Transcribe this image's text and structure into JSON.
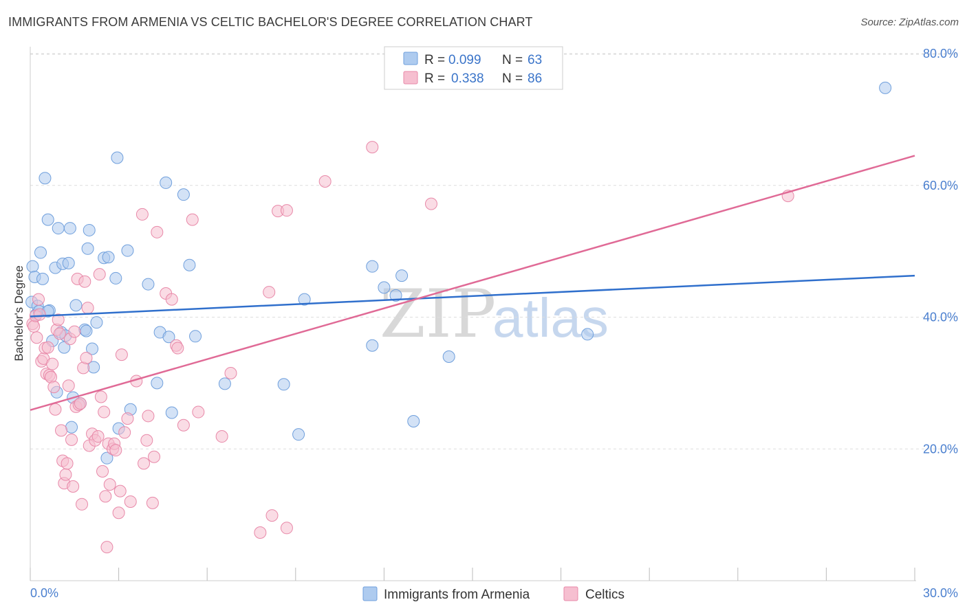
{
  "title": "IMMIGRANTS FROM ARMENIA VS CELTIC BACHELOR'S DEGREE CORRELATION CHART",
  "source": "Source: ZipAtlas.com",
  "watermark": {
    "zip": "ZIP",
    "atlas": "atlas"
  },
  "colors": {
    "armenia_fill": "#aecbef",
    "armenia_stroke": "#6f9fdc",
    "armenia_line": "#2f6fcc",
    "celtics_fill": "#f6bfd0",
    "celtics_stroke": "#e888a8",
    "celtics_line": "#e06a96",
    "grid": "#dddddd",
    "tick_label": "#4a7fcf"
  },
  "legend": {
    "rows": [
      {
        "r_label": "R =",
        "r_value": "0.099",
        "n_label": "N =",
        "n_value": "63"
      },
      {
        "r_label": "R =",
        "r_value": "0.338",
        "n_label": "N =",
        "n_value": "86"
      }
    ]
  },
  "chart_data": {
    "type": "scatter",
    "title": "IMMIGRANTS FROM ARMENIA VS CELTIC BACHELOR'S DEGREE CORRELATION CHART",
    "xlabel": "",
    "ylabel": "Bachelor's Degree",
    "xlim": [
      0,
      30
    ],
    "ylim": [
      0,
      80
    ],
    "x_tick_labels": {
      "left": "0.0%",
      "right": "30.0%"
    },
    "y_ticks": [
      {
        "value": 20,
        "label": "20.0%"
      },
      {
        "value": 40,
        "label": "40.0%"
      },
      {
        "value": 60,
        "label": "60.0%"
      },
      {
        "value": 80,
        "label": "80.0%"
      }
    ],
    "grid": true,
    "series": [
      {
        "name": "Immigrants from Armenia",
        "R": 0.099,
        "N": 63,
        "trend": {
          "x": [
            0,
            30
          ],
          "y": [
            40.1,
            46.3
          ]
        },
        "points": [
          [
            0.05,
            42.3
          ],
          [
            0.08,
            47.7
          ],
          [
            0.15,
            46.1
          ],
          [
            0.2,
            40.4
          ],
          [
            0.25,
            41.7
          ],
          [
            0.3,
            40.9
          ],
          [
            0.35,
            49.8
          ],
          [
            0.42,
            45.8
          ],
          [
            0.5,
            61.1
          ],
          [
            0.6,
            54.8
          ],
          [
            0.65,
            41.0
          ],
          [
            0.75,
            36.4
          ],
          [
            0.85,
            47.5
          ],
          [
            0.9,
            28.6
          ],
          [
            0.95,
            53.5
          ],
          [
            1.05,
            37.7
          ],
          [
            1.1,
            48.1
          ],
          [
            1.15,
            35.4
          ],
          [
            1.2,
            37.2
          ],
          [
            1.3,
            48.2
          ],
          [
            1.35,
            53.5
          ],
          [
            1.4,
            23.3
          ],
          [
            1.45,
            27.8
          ],
          [
            1.55,
            41.8
          ],
          [
            1.7,
            26.9
          ],
          [
            1.85,
            38.1
          ],
          [
            1.95,
            50.4
          ],
          [
            2.0,
            53.2
          ],
          [
            2.1,
            35.2
          ],
          [
            2.15,
            32.4
          ],
          [
            2.25,
            39.2
          ],
          [
            2.5,
            49.0
          ],
          [
            2.6,
            18.6
          ],
          [
            2.65,
            49.1
          ],
          [
            2.9,
            45.9
          ],
          [
            2.95,
            64.2
          ],
          [
            3.0,
            23.1
          ],
          [
            3.3,
            50.1
          ],
          [
            3.4,
            26.0
          ],
          [
            4.0,
            45.0
          ],
          [
            4.3,
            30.0
          ],
          [
            4.4,
            37.7
          ],
          [
            4.6,
            60.4
          ],
          [
            4.7,
            37.0
          ],
          [
            4.8,
            25.5
          ],
          [
            5.2,
            58.6
          ],
          [
            5.4,
            47.9
          ],
          [
            5.6,
            37.1
          ],
          [
            6.6,
            29.9
          ],
          [
            8.6,
            29.8
          ],
          [
            9.1,
            22.2
          ],
          [
            9.3,
            42.7
          ],
          [
            11.6,
            47.7
          ],
          [
            11.6,
            35.7
          ],
          [
            12.0,
            44.5
          ],
          [
            12.4,
            43.3
          ],
          [
            12.6,
            46.3
          ],
          [
            13.0,
            24.2
          ],
          [
            14.2,
            34.0
          ],
          [
            18.9,
            37.4
          ],
          [
            29.0,
            74.8
          ],
          [
            0.6,
            40.9
          ],
          [
            1.9,
            37.9
          ]
        ]
      },
      {
        "name": "Celtics",
        "R": 0.338,
        "N": 86,
        "trend": {
          "x": [
            0,
            30
          ],
          "y": [
            25.9,
            64.5
          ]
        },
        "points": [
          [
            0.08,
            39.0
          ],
          [
            0.12,
            38.6
          ],
          [
            0.18,
            40.2
          ],
          [
            0.22,
            36.9
          ],
          [
            0.28,
            42.7
          ],
          [
            0.32,
            40.4
          ],
          [
            0.38,
            33.3
          ],
          [
            0.45,
            33.7
          ],
          [
            0.5,
            35.3
          ],
          [
            0.55,
            31.4
          ],
          [
            0.6,
            35.4
          ],
          [
            0.65,
            31.2
          ],
          [
            0.7,
            30.9
          ],
          [
            0.75,
            32.9
          ],
          [
            0.8,
            29.4
          ],
          [
            0.85,
            26.0
          ],
          [
            0.9,
            38.1
          ],
          [
            0.95,
            39.6
          ],
          [
            1.0,
            37.5
          ],
          [
            1.05,
            22.8
          ],
          [
            1.1,
            18.2
          ],
          [
            1.15,
            14.8
          ],
          [
            1.2,
            16.1
          ],
          [
            1.25,
            17.8
          ],
          [
            1.3,
            29.6
          ],
          [
            1.35,
            36.7
          ],
          [
            1.4,
            21.4
          ],
          [
            1.45,
            14.3
          ],
          [
            1.5,
            37.8
          ],
          [
            1.55,
            26.4
          ],
          [
            1.6,
            45.8
          ],
          [
            1.65,
            26.7
          ],
          [
            1.7,
            26.9
          ],
          [
            1.75,
            11.6
          ],
          [
            1.8,
            32.3
          ],
          [
            1.85,
            45.4
          ],
          [
            1.9,
            33.8
          ],
          [
            1.95,
            41.4
          ],
          [
            2.0,
            20.5
          ],
          [
            2.1,
            22.3
          ],
          [
            2.2,
            21.3
          ],
          [
            2.3,
            21.9
          ],
          [
            2.35,
            46.5
          ],
          [
            2.4,
            27.9
          ],
          [
            2.45,
            16.6
          ],
          [
            2.5,
            25.6
          ],
          [
            2.55,
            12.8
          ],
          [
            2.6,
            5.1
          ],
          [
            2.65,
            20.8
          ],
          [
            2.7,
            14.6
          ],
          [
            2.8,
            20.0
          ],
          [
            2.85,
            20.8
          ],
          [
            2.9,
            19.8
          ],
          [
            3.0,
            10.3
          ],
          [
            3.05,
            13.6
          ],
          [
            3.1,
            34.3
          ],
          [
            3.2,
            22.5
          ],
          [
            3.3,
            24.6
          ],
          [
            3.4,
            12.0
          ],
          [
            3.6,
            30.3
          ],
          [
            3.8,
            55.6
          ],
          [
            3.85,
            17.8
          ],
          [
            3.95,
            21.3
          ],
          [
            4.0,
            25.0
          ],
          [
            4.15,
            11.8
          ],
          [
            4.2,
            18.8
          ],
          [
            4.3,
            52.9
          ],
          [
            4.6,
            43.6
          ],
          [
            4.8,
            42.7
          ],
          [
            4.95,
            35.7
          ],
          [
            5.0,
            35.3
          ],
          [
            5.2,
            23.6
          ],
          [
            5.5,
            54.8
          ],
          [
            5.7,
            25.6
          ],
          [
            6.5,
            21.9
          ],
          [
            6.8,
            31.5
          ],
          [
            7.8,
            7.3
          ],
          [
            8.1,
            43.8
          ],
          [
            8.2,
            9.9
          ],
          [
            8.4,
            56.1
          ],
          [
            8.7,
            8.0
          ],
          [
            8.7,
            56.2
          ],
          [
            10.0,
            60.6
          ],
          [
            11.6,
            65.8
          ],
          [
            13.6,
            57.2
          ],
          [
            25.7,
            58.4
          ]
        ]
      }
    ]
  },
  "bottom_legend": [
    {
      "label": "Immigrants from Armenia"
    },
    {
      "label": "Celtics"
    }
  ]
}
